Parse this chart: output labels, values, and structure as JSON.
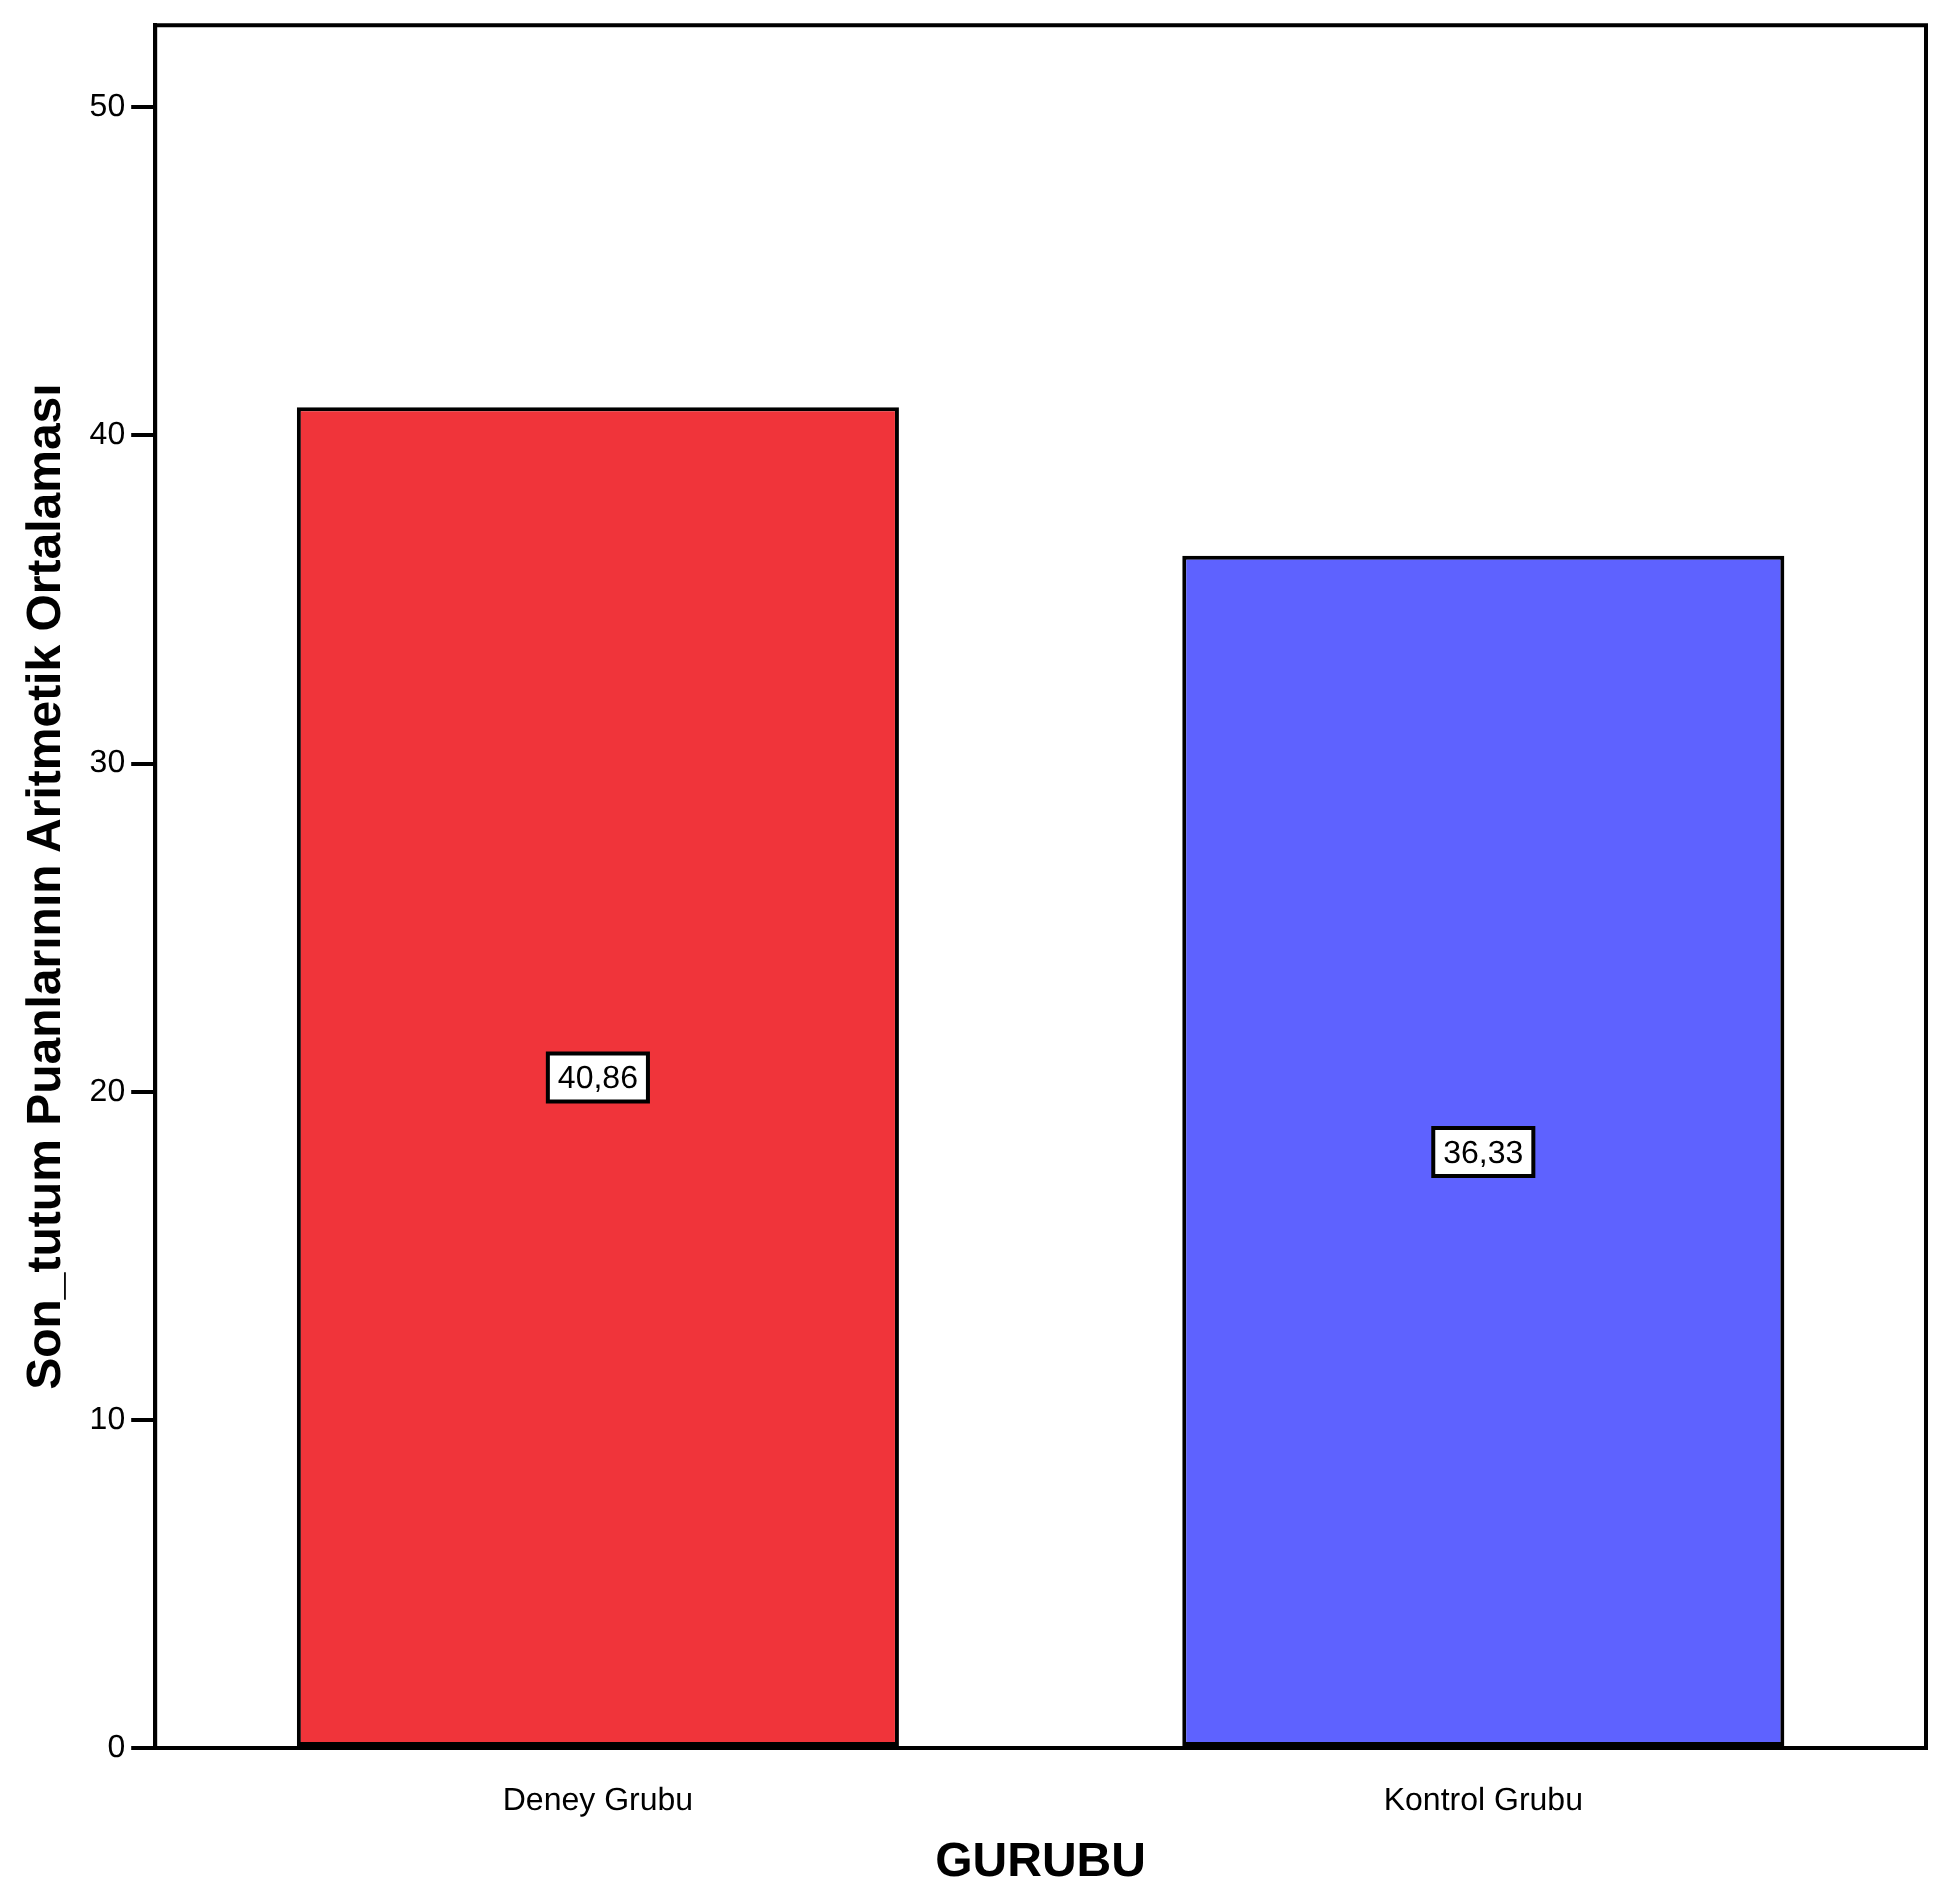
{
  "chart_data": {
    "type": "bar",
    "xlabel": "GURUBU",
    "ylabel": "Son_tutum Puanlarının Aritmetik Ortalaması",
    "categories": [
      "Deney Grubu",
      "Kontrol Grubu"
    ],
    "values": [
      40.86,
      36.33
    ],
    "colors": [
      "#f0343a",
      "#5e62ff"
    ],
    "value_labels": [
      "40,86",
      "36,33"
    ],
    "ylim": [
      0,
      52.5
    ],
    "yticks": [
      0,
      10,
      20,
      30,
      40,
      50
    ],
    "grid": false,
    "legend": false
  }
}
